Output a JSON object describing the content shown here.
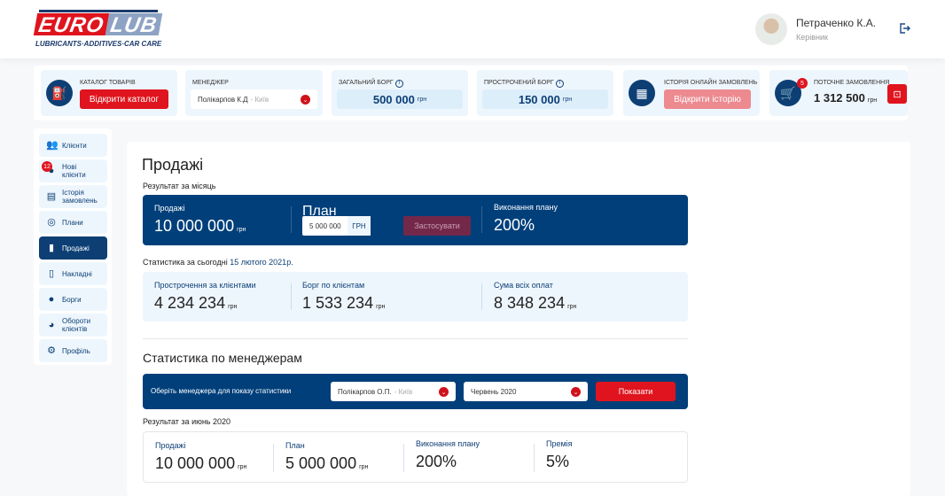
{
  "header": {
    "logo_main_left": "EURO",
    "logo_main_right": "LUB",
    "logo_tagline": "LUBRICANTS·ADDITIVES·CAR CARE",
    "user_name": "Петраченко К.А.",
    "user_role": "Керівник"
  },
  "topbar": {
    "catalog": {
      "label": "Каталог товарів",
      "button": "Відкрити каталог"
    },
    "manager": {
      "label": "Менеджер",
      "value": "Полікарпов К.Д",
      "city": "- Київ"
    },
    "total_debt": {
      "label": "Загальний борг",
      "value": "500 000",
      "unit": "грн"
    },
    "overdue_debt": {
      "label": "Прострочений борг",
      "value": "150 000",
      "unit": "грн"
    },
    "history": {
      "label": "Історія онлайн замовлень",
      "button": "Відкрити історію"
    },
    "current_order": {
      "label": "Поточне замовлення",
      "value": "1 312 500",
      "unit": "грн",
      "badge": "5"
    }
  },
  "sidebar": {
    "items": [
      {
        "label": "Клієнти"
      },
      {
        "label": "Нові клієнти",
        "badge": "12"
      },
      {
        "label": "Історія замовлень"
      },
      {
        "label": "Плани"
      },
      {
        "label": "Продажі"
      },
      {
        "label": "Накладні"
      },
      {
        "label": "Борги"
      },
      {
        "label": "Обороти клієнтів"
      },
      {
        "label": "Профіль"
      }
    ]
  },
  "main": {
    "title": "Продажі",
    "month_label": "Результат за місяць",
    "month": {
      "sales_label": "Продажі",
      "sales_value": "10 000 000",
      "unit": "грн",
      "plan_label": "План",
      "plan_input": "5 000 000",
      "plan_currency": "ГРН",
      "apply_button": "Застосувати",
      "exec_label": "Виконання плану",
      "exec_value": "200%"
    },
    "today_label": "Статистика за сьогодні",
    "today_date": "15 лютого 2021р.",
    "today": [
      {
        "label": "Прострочення за клієнтами",
        "value": "4 234 234",
        "unit": "грн"
      },
      {
        "label": "Борг по клієнтам",
        "value": "1 533 234",
        "unit": "грн"
      },
      {
        "label": "Сума всіх оплат",
        "value": "8 348 234",
        "unit": "грн"
      }
    ],
    "managers_title": "Статистика по менеджерам",
    "filter": {
      "label": "Оберіть менеджера для показу статистики",
      "manager": "Полікарпов О.П.",
      "city": "- Київ",
      "month": "Червень 2020",
      "button": "Показати"
    },
    "result_label": "Результат за июнь 2020",
    "result": [
      {
        "label": "Продажі",
        "value": "10 000 000",
        "unit": "грн"
      },
      {
        "label": "План",
        "value": "5 000 000",
        "unit": "грн"
      },
      {
        "label": "Виконання плану",
        "value": "200%"
      },
      {
        "label": "Премія",
        "value": "5%"
      }
    ]
  },
  "colors": {
    "brand_blue": "#003f7a",
    "brand_red": "#e0141e",
    "light_bg": "#eef6fd"
  }
}
